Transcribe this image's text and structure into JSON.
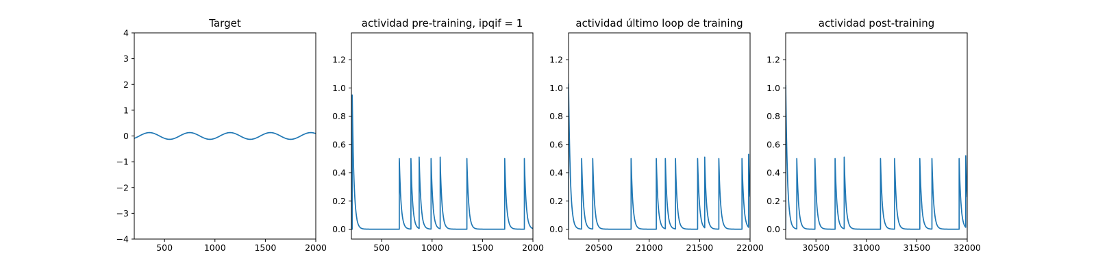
{
  "chart_data": [
    {
      "type": "line",
      "title": "Target",
      "xlabel": "",
      "ylabel": "",
      "xlim": [
        200,
        2000
      ],
      "ylim": [
        -4,
        4
      ],
      "xticks": [
        500,
        1000,
        1500,
        2000
      ],
      "yticks": [
        -4,
        -3,
        -2,
        -1,
        0,
        1,
        2,
        3,
        4
      ],
      "grid": false,
      "color": "#1f77b4",
      "series": [
        {
          "generator": "sine",
          "amplitude": 0.13,
          "period": 400,
          "peaks_at": [
            350,
            750,
            1150,
            1550,
            1950
          ]
        }
      ]
    },
    {
      "type": "line",
      "title": "actividad pre-training, ipqif = 1",
      "xlabel": "",
      "ylabel": "",
      "xlim": [
        200,
        2000
      ],
      "ylim": [
        -0.07,
        1.39
      ],
      "xticks": [
        500,
        1000,
        1500,
        2000
      ],
      "yticks": [
        0.0,
        0.2,
        0.4,
        0.6,
        0.8,
        1.0,
        1.2
      ],
      "grid": false,
      "color": "#1f77b4",
      "series": [
        {
          "generator": "spike_decay",
          "baseline": 0.0,
          "decay_tau": 18,
          "spikes": [
            {
              "t": 208,
              "peak": 0.95
            },
            {
              "t": 675,
              "peak": 0.5
            },
            {
              "t": 790,
              "peak": 0.5
            },
            {
              "t": 872,
              "peak": 0.51
            },
            {
              "t": 990,
              "peak": 0.5
            },
            {
              "t": 1080,
              "peak": 0.51
            },
            {
              "t": 1345,
              "peak": 0.5
            },
            {
              "t": 1720,
              "peak": 0.5
            },
            {
              "t": 1915,
              "peak": 0.5
            }
          ]
        }
      ]
    },
    {
      "type": "line",
      "title": "actividad último loop de training",
      "xlabel": "",
      "ylabel": "",
      "xlim": [
        20200,
        22000
      ],
      "ylim": [
        -0.07,
        1.39
      ],
      "xticks": [
        20500,
        21000,
        21500,
        22000
      ],
      "yticks": [
        0.0,
        0.2,
        0.4,
        0.6,
        0.8,
        1.0,
        1.2
      ],
      "grid": false,
      "color": "#1f77b4",
      "series": [
        {
          "generator": "spike_decay",
          "baseline": 0.0,
          "decay_tau": 18,
          "spikes": [
            {
              "t": 20200,
              "peak": 1.03
            },
            {
              "t": 20330,
              "peak": 0.5
            },
            {
              "t": 20440,
              "peak": 0.5
            },
            {
              "t": 20820,
              "peak": 0.5
            },
            {
              "t": 21070,
              "peak": 0.5
            },
            {
              "t": 21160,
              "peak": 0.5
            },
            {
              "t": 21260,
              "peak": 0.5
            },
            {
              "t": 21480,
              "peak": 0.5
            },
            {
              "t": 21550,
              "peak": 0.51
            },
            {
              "t": 21690,
              "peak": 0.5
            },
            {
              "t": 21920,
              "peak": 0.5
            },
            {
              "t": 21985,
              "peak": 0.53
            }
          ]
        }
      ]
    },
    {
      "type": "line",
      "title": "actividad post-training",
      "xlabel": "",
      "ylabel": "",
      "xlim": [
        30200,
        32000
      ],
      "ylim": [
        -0.07,
        1.39
      ],
      "xticks": [
        30500,
        31000,
        31500,
        32000
      ],
      "yticks": [
        0.0,
        0.2,
        0.4,
        0.6,
        0.8,
        1.0,
        1.2
      ],
      "grid": false,
      "color": "#1f77b4",
      "series": [
        {
          "generator": "spike_decay",
          "baseline": 0.0,
          "decay_tau": 18,
          "spikes": [
            {
              "t": 30200,
              "peak": 1.02
            },
            {
              "t": 30310,
              "peak": 0.5
            },
            {
              "t": 30490,
              "peak": 0.5
            },
            {
              "t": 30690,
              "peak": 0.5
            },
            {
              "t": 30780,
              "peak": 0.51
            },
            {
              "t": 31140,
              "peak": 0.5
            },
            {
              "t": 31280,
              "peak": 0.5
            },
            {
              "t": 31530,
              "peak": 0.5
            },
            {
              "t": 31650,
              "peak": 0.5
            },
            {
              "t": 31920,
              "peak": 0.5
            },
            {
              "t": 31985,
              "peak": 0.52
            }
          ]
        }
      ]
    }
  ]
}
